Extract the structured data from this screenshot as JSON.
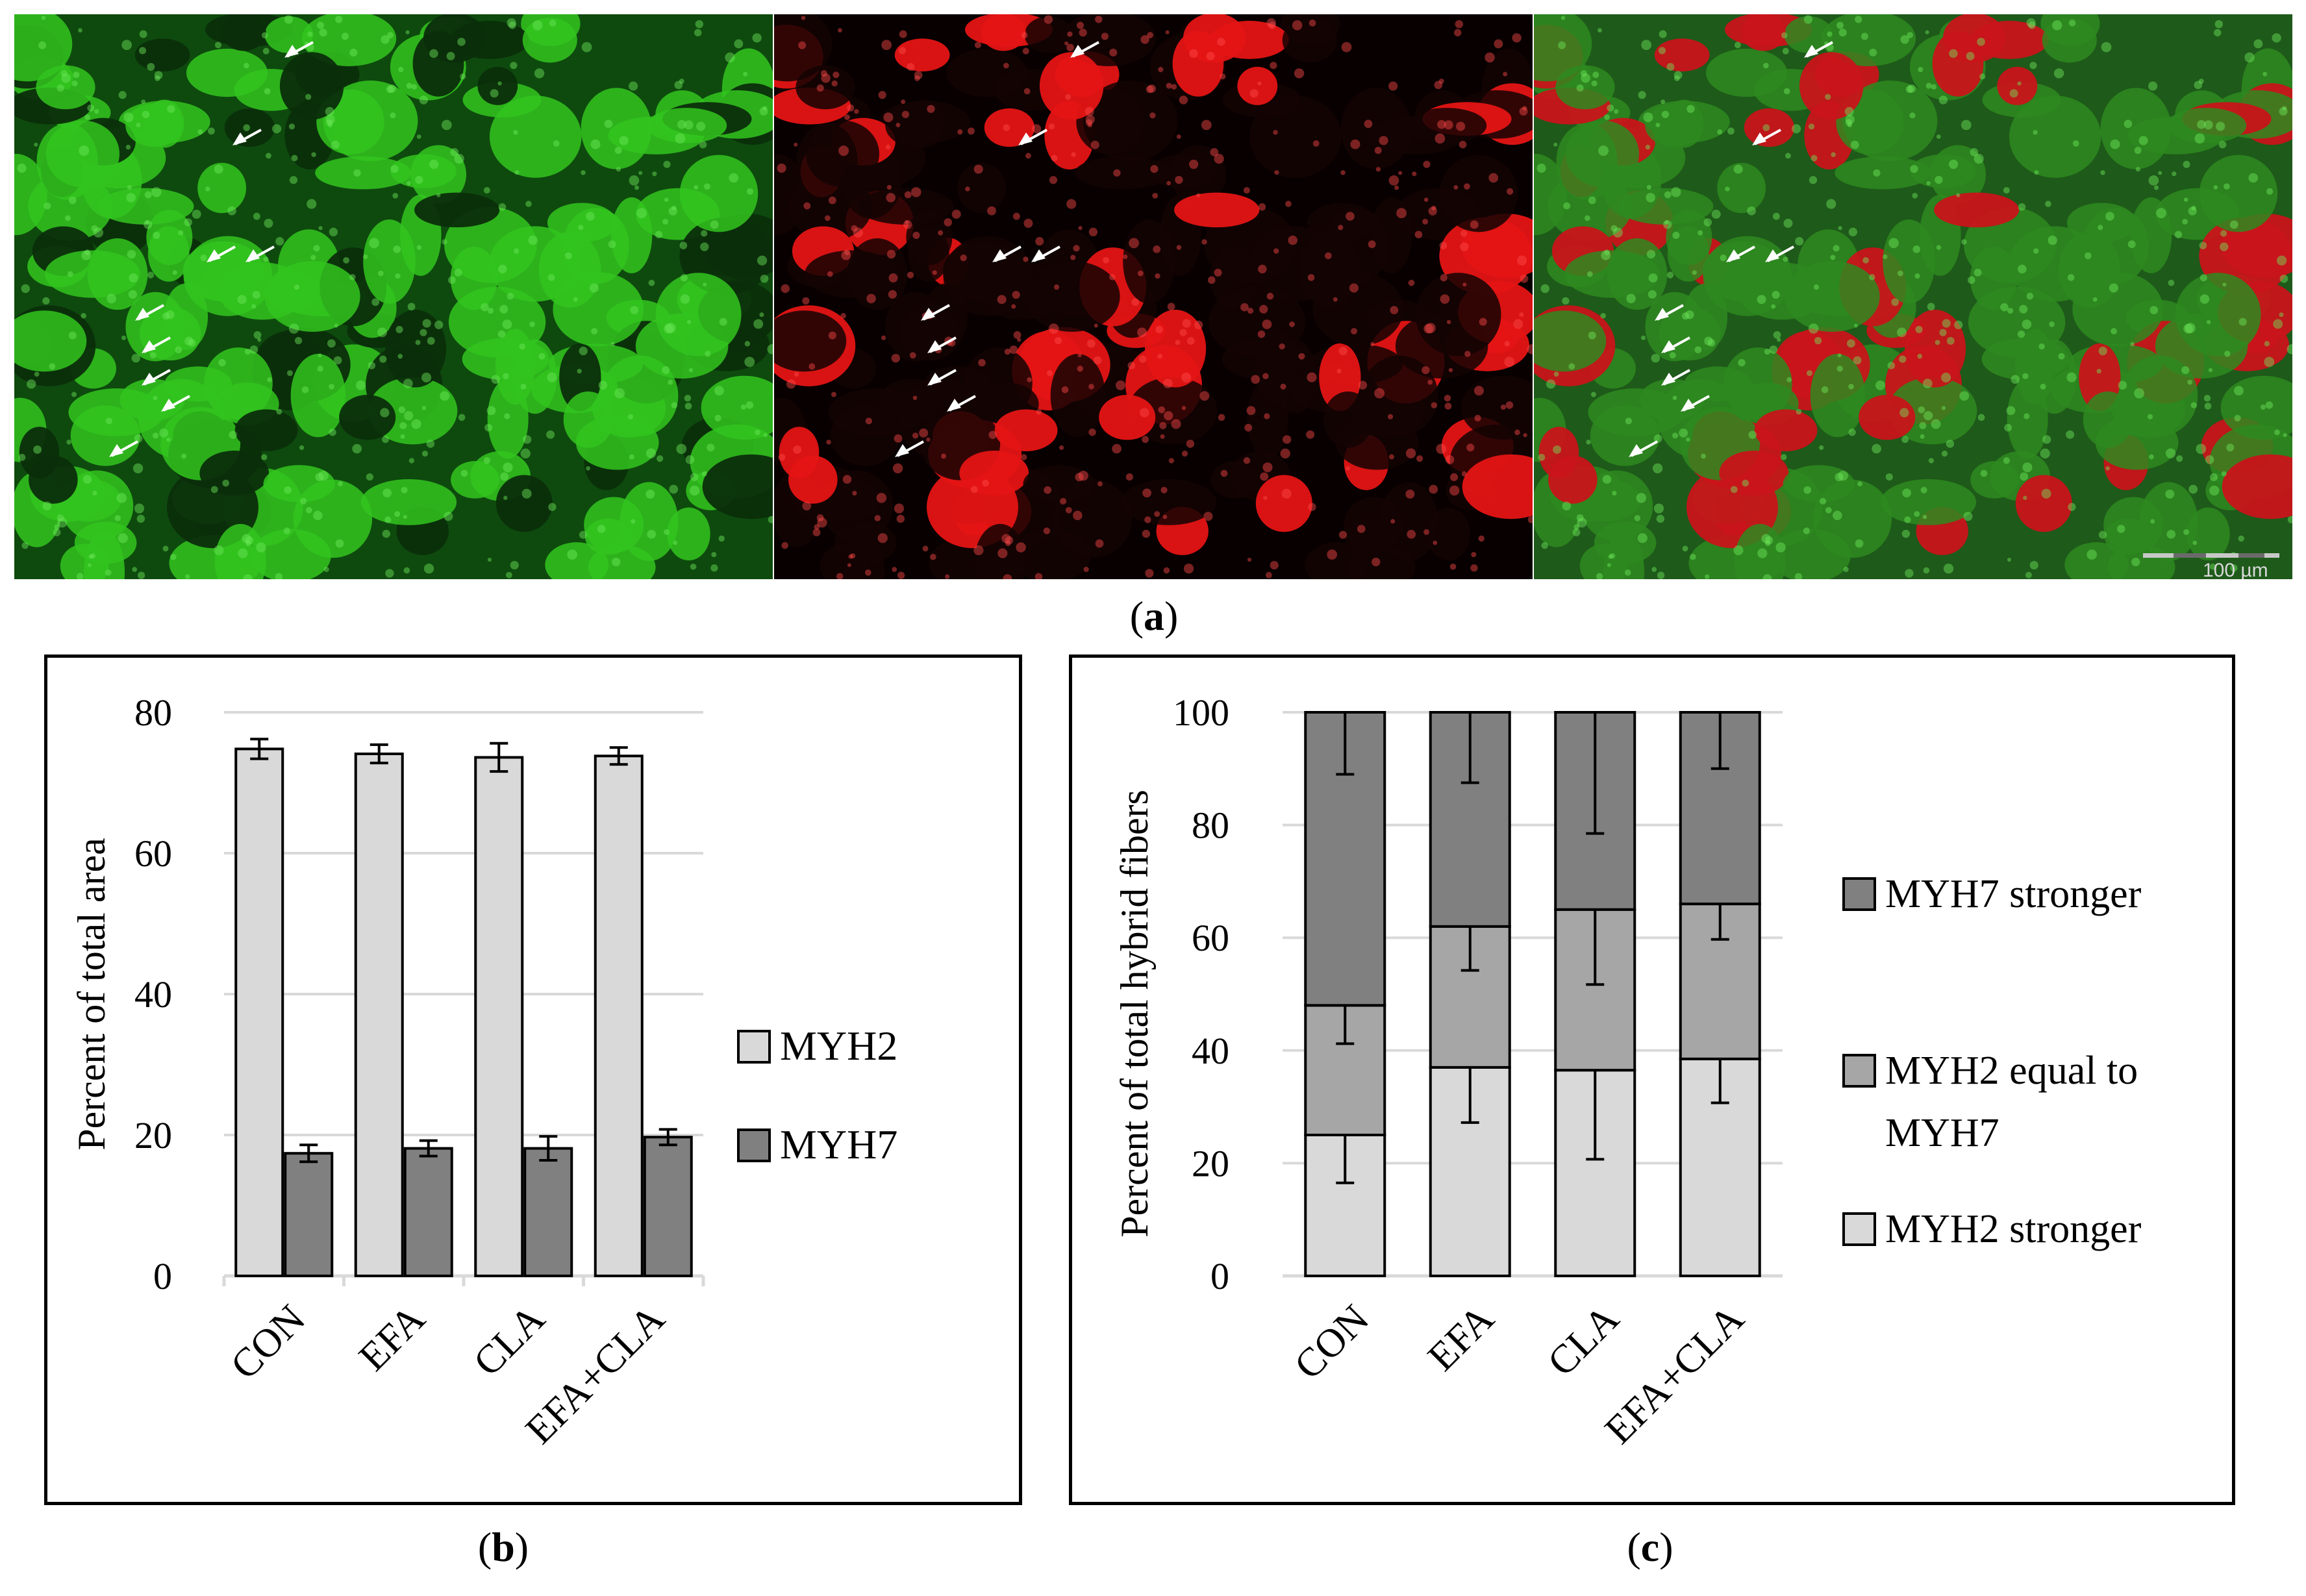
{
  "figure": {
    "panel_a_caption": "a",
    "panel_b_caption": "b",
    "panel_c_caption": "c",
    "scale_bar_label": "100 µm",
    "panel_colors": {
      "green_channel": "#33c41e",
      "red_channel": "#e51414",
      "overlay_background": "#2e8a20"
    }
  },
  "chart_data": [
    {
      "id": "b",
      "type": "bar",
      "categories": [
        "CON",
        "EFA",
        "CLA",
        "EFA+CLA"
      ],
      "series": [
        {
          "name": "MYH2",
          "color": "#d9d9d9",
          "values": [
            74.8,
            74.1,
            73.6,
            73.8
          ],
          "errors": [
            1.4,
            1.3,
            2.0,
            1.2
          ]
        },
        {
          "name": "MYH7",
          "color": "#808080",
          "values": [
            17.4,
            18.1,
            18.1,
            19.7
          ],
          "errors": [
            1.2,
            1.1,
            1.7,
            1.1
          ]
        }
      ],
      "ylabel": "Percent of total area",
      "ylim": [
        0,
        80
      ],
      "yticks": [
        0,
        20,
        40,
        60,
        80
      ],
      "legend_position": "right",
      "grid": true
    },
    {
      "id": "c",
      "type": "bar",
      "stacked": true,
      "categories": [
        "CON",
        "EFA",
        "CLA",
        "EFA+CLA"
      ],
      "series": [
        {
          "name": "MYH2 stronger",
          "color": "#d9d9d9",
          "values": [
            25,
            37,
            36.5,
            38.5
          ],
          "errors": [
            8.5,
            9.8,
            15.8,
            7.8
          ]
        },
        {
          "name": "MYH2 equal to MYH7",
          "color": "#a6a6a6",
          "values": [
            23,
            25,
            28.5,
            27.5
          ],
          "errors": [
            6.8,
            7.8,
            13.3,
            6.3
          ]
        },
        {
          "name": "MYH7 stronger",
          "color": "#808080",
          "values": [
            52,
            38,
            35,
            34
          ],
          "errors": [
            11,
            12.5,
            21.5,
            10
          ]
        }
      ],
      "legend_order": [
        "MYH7 stronger",
        "MYH2 equal to MYH7",
        "MYH2 stronger"
      ],
      "ylabel": "Percent of total hybrid fibers",
      "ylim": [
        0,
        100
      ],
      "yticks": [
        0,
        20,
        40,
        60,
        80,
        100
      ],
      "legend_position": "right",
      "grid": true
    }
  ]
}
